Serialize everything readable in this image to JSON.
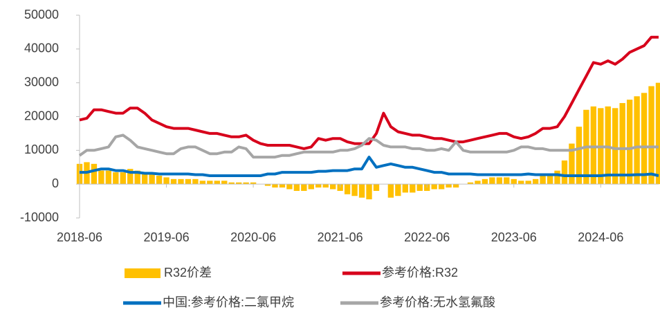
{
  "chart_data": {
    "type": "combo",
    "x": [
      "2018-06",
      "2018-07",
      "2018-08",
      "2018-09",
      "2018-10",
      "2018-11",
      "2018-12",
      "2019-01",
      "2019-02",
      "2019-03",
      "2019-04",
      "2019-05",
      "2019-06",
      "2019-07",
      "2019-08",
      "2019-09",
      "2019-10",
      "2019-11",
      "2019-12",
      "2020-01",
      "2020-02",
      "2020-03",
      "2020-04",
      "2020-05",
      "2020-06",
      "2020-07",
      "2020-08",
      "2020-09",
      "2020-10",
      "2020-11",
      "2020-12",
      "2021-01",
      "2021-02",
      "2021-03",
      "2021-04",
      "2021-05",
      "2021-06",
      "2021-07",
      "2021-08",
      "2021-09",
      "2021-10",
      "2021-11",
      "2021-12",
      "2022-01",
      "2022-02",
      "2022-03",
      "2022-04",
      "2022-05",
      "2022-06",
      "2022-07",
      "2022-08",
      "2022-09",
      "2022-10",
      "2022-11",
      "2022-12",
      "2023-01",
      "2023-02",
      "2023-03",
      "2023-04",
      "2023-05",
      "2023-06",
      "2023-07",
      "2023-08",
      "2023-09",
      "2023-10",
      "2023-11",
      "2023-12",
      "2024-01",
      "2024-02",
      "2024-03",
      "2024-04",
      "2024-05",
      "2024-06",
      "2024-07",
      "2024-08",
      "2024-09",
      "2024-10",
      "2024-11",
      "2024-12",
      "2025-01",
      "2025-02"
    ],
    "xticks": [
      "2018-06",
      "2019-06",
      "2020-06",
      "2021-06",
      "2022-06",
      "2023-06",
      "2024-06"
    ],
    "ylim": [
      -10000,
      50000
    ],
    "yticks": [
      -10000,
      0,
      10000,
      20000,
      30000,
      40000,
      50000
    ],
    "series": [
      {
        "name": "R32价差",
        "type": "bar",
        "color": "#ffc000",
        "values": [
          6000,
          6500,
          6000,
          4000,
          4000,
          3500,
          3500,
          4500,
          4000,
          3500,
          3000,
          2500,
          2000,
          1500,
          1500,
          1500,
          1500,
          1000,
          1000,
          1000,
          1000,
          500,
          500,
          500,
          500,
          0,
          -500,
          -1000,
          -1000,
          -1500,
          -2000,
          -2000,
          -1500,
          -1000,
          -1000,
          -1500,
          -2000,
          -3000,
          -3500,
          -4000,
          -4500,
          -2000,
          0,
          -4000,
          -3500,
          -2500,
          -2500,
          -2000,
          -2000,
          -1500,
          -1500,
          -1000,
          -1000,
          0,
          500,
          1000,
          1500,
          2000,
          2000,
          2000,
          1500,
          1000,
          1000,
          1500,
          2500,
          3000,
          4000,
          7000,
          12000,
          17000,
          22000,
          23000,
          22500,
          23000,
          22500,
          24000,
          25000,
          26000,
          27000,
          29000,
          30000
        ]
      },
      {
        "name": "参考价格:R32",
        "type": "line",
        "color": "#d7001b",
        "values": [
          19000,
          19500,
          22000,
          22000,
          21500,
          21000,
          21000,
          22500,
          22500,
          21000,
          19000,
          18000,
          17000,
          16500,
          16500,
          16500,
          16000,
          15500,
          15000,
          15000,
          14500,
          14000,
          14000,
          14500,
          13000,
          12000,
          11500,
          11500,
          11500,
          11500,
          11000,
          10500,
          11000,
          13500,
          13000,
          13500,
          13500,
          12500,
          12000,
          12000,
          12000,
          15000,
          21000,
          17000,
          15500,
          15000,
          14500,
          14500,
          14000,
          13500,
          13500,
          13000,
          12500,
          12500,
          13000,
          13500,
          14000,
          14500,
          15000,
          15000,
          14000,
          13500,
          14000,
          15000,
          16500,
          16500,
          17000,
          20000,
          24000,
          28000,
          32000,
          36000,
          35500,
          36500,
          35500,
          37000,
          39000,
          40000,
          41000,
          43500,
          43500
        ]
      },
      {
        "name": "中国:参考价格:二氯甲烷",
        "type": "line",
        "color": "#0070c0",
        "values": [
          3500,
          3500,
          4000,
          4500,
          4500,
          4000,
          4000,
          3500,
          3500,
          3200,
          3200,
          3000,
          3000,
          3000,
          3000,
          3000,
          2800,
          2800,
          2500,
          2500,
          2500,
          2500,
          2500,
          2500,
          2500,
          2500,
          3000,
          3000,
          3500,
          3500,
          3500,
          3500,
          3500,
          3800,
          3800,
          4000,
          4000,
          4000,
          4500,
          4500,
          8000,
          5000,
          5500,
          6000,
          5500,
          5000,
          5000,
          4500,
          4000,
          3500,
          3500,
          3000,
          3000,
          3000,
          3000,
          2800,
          2800,
          2800,
          2800,
          2800,
          2800,
          2800,
          3000,
          2800,
          2800,
          2800,
          2800,
          2500,
          2500,
          2500,
          2500,
          2500,
          2500,
          2700,
          2700,
          2700,
          2700,
          2800,
          2800,
          3000,
          2500
        ]
      },
      {
        "name": "参考价格:无水氢氟酸",
        "type": "line",
        "color": "#a6a6a6",
        "values": [
          8500,
          10000,
          10000,
          10500,
          11000,
          14000,
          14500,
          13000,
          11000,
          10500,
          10000,
          9500,
          9000,
          9000,
          10500,
          11000,
          11000,
          10000,
          9000,
          9000,
          9500,
          9500,
          11000,
          10500,
          8000,
          8000,
          8000,
          8000,
          8500,
          8500,
          9000,
          9500,
          9500,
          9500,
          9500,
          9500,
          10000,
          10000,
          10500,
          11500,
          13500,
          13000,
          11500,
          11000,
          11000,
          11000,
          10500,
          10500,
          10000,
          10000,
          10500,
          10000,
          12500,
          10000,
          9500,
          9500,
          9500,
          9500,
          9500,
          9500,
          10000,
          11000,
          11000,
          10500,
          10500,
          10000,
          10000,
          10000,
          10000,
          10500,
          11000,
          11000,
          11000,
          11000,
          10500,
          10500,
          10500,
          11000,
          11000,
          11000,
          11000
        ]
      }
    ]
  }
}
